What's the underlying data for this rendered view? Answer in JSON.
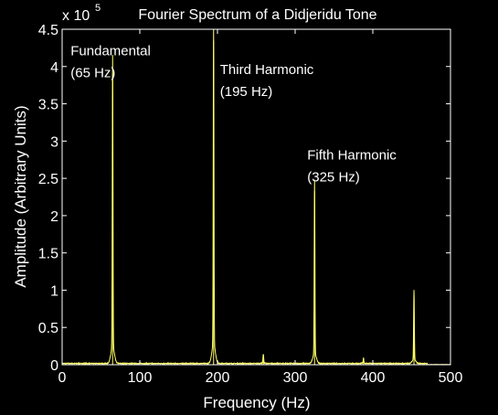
{
  "chart_data": {
    "type": "line",
    "title": "Fourier Spectrum of a Didjeridu Tone",
    "xlabel": "Frequency (Hz)",
    "ylabel": "Amplitude (Arbitrary Units)",
    "xlim": [
      0,
      500
    ],
    "ylim": [
      0,
      4.5
    ],
    "y_multiplier_label": "x 10",
    "y_multiplier_exponent": "5",
    "x_ticks": [
      {
        "value": 0,
        "label": "0"
      },
      {
        "value": 100,
        "label": "100"
      },
      {
        "value": 200,
        "label": "200"
      },
      {
        "value": 300,
        "label": "300"
      },
      {
        "value": 400,
        "label": "400"
      },
      {
        "value": 500,
        "label": "500"
      }
    ],
    "y_ticks": [
      {
        "value": 0,
        "label": "0"
      },
      {
        "value": 0.5,
        "label": "0.5"
      },
      {
        "value": 1,
        "label": "1"
      },
      {
        "value": 1.5,
        "label": "1.5"
      },
      {
        "value": 2,
        "label": "2"
      },
      {
        "value": 2.5,
        "label": "2.5"
      },
      {
        "value": 3,
        "label": "3"
      },
      {
        "value": 3.5,
        "label": "3.5"
      },
      {
        "value": 4,
        "label": "4"
      },
      {
        "value": 4.5,
        "label": "4.5"
      }
    ],
    "grid": false,
    "line_color": "#ffff66",
    "background": "#000000",
    "axes_color": "#ffffff",
    "peaks": [
      {
        "x": 65,
        "y": 3.9
      },
      {
        "x": 195,
        "y": 4.35
      },
      {
        "x": 259,
        "y": 0.12
      },
      {
        "x": 325,
        "y": 2.33
      },
      {
        "x": 388,
        "y": 0.07
      },
      {
        "x": 453,
        "y": 0.93
      }
    ],
    "annotations": [
      {
        "lines": [
          "Fundamental",
          "(65 Hz)"
        ],
        "x": 65,
        "y": 4.15
      },
      {
        "lines": [
          "Third Harmonic",
          "(195 Hz)"
        ],
        "x": 195,
        "y": 3.9
      },
      {
        "lines": [
          "Fifth Harmonic",
          "(325 Hz)"
        ],
        "x": 325,
        "y": 2.75
      }
    ]
  }
}
